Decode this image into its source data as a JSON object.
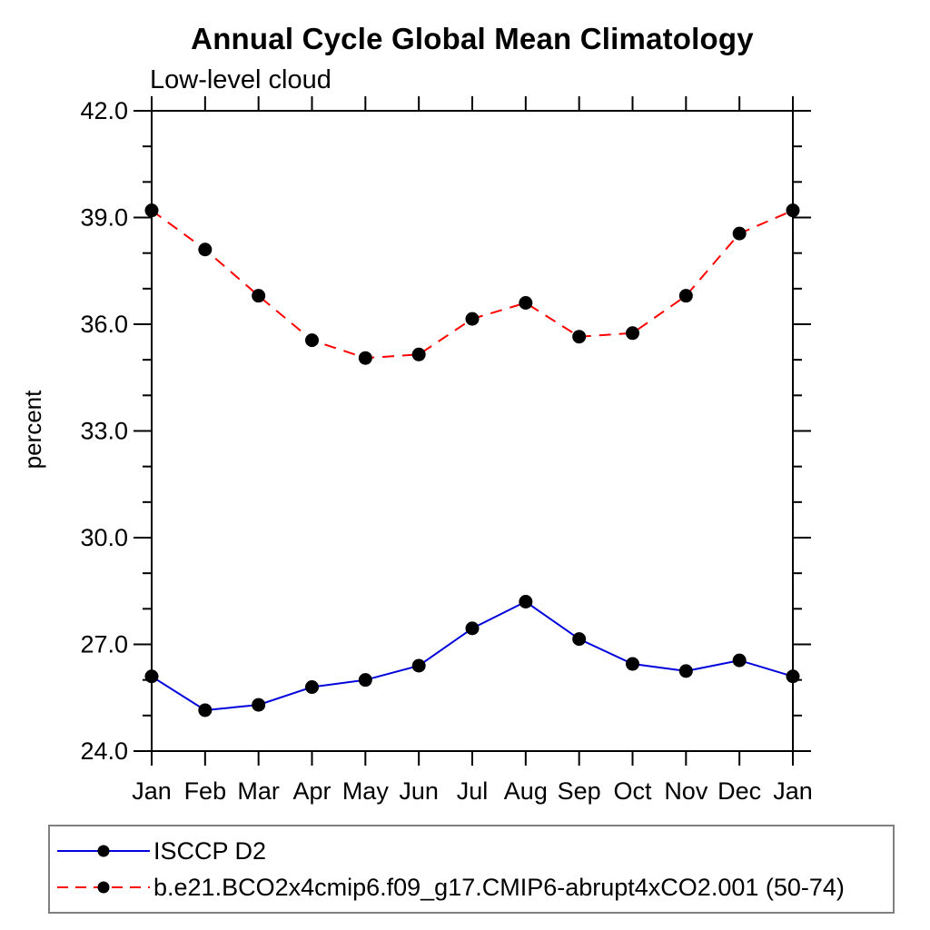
{
  "title": "Annual Cycle Global Mean Climatology",
  "subtitle": "Low-level cloud",
  "colors": {
    "background": "#ffffff",
    "axis": "#000000",
    "marker": "#000000",
    "legend_border": "#808080",
    "series_blue": "#0000dd",
    "series_red": "#ff0000"
  },
  "chart_data": {
    "type": "line",
    "title": "Annual Cycle Global Mean Climatology",
    "subtitle": "Low-level cloud",
    "xlabel": "",
    "ylabel": "percent",
    "categories": [
      "Jan",
      "Feb",
      "Mar",
      "Apr",
      "May",
      "Jun",
      "Jul",
      "Aug",
      "Sep",
      "Oct",
      "Nov",
      "Dec",
      "Jan"
    ],
    "ylim": [
      24.0,
      42.0
    ],
    "ytick_values": [
      24,
      27,
      30,
      33,
      36,
      39,
      42
    ],
    "ytick_labels": [
      "24.0",
      "27.0",
      "30.0",
      "33.0",
      "36.0",
      "39.0",
      "42.0"
    ],
    "yminor_step": 1.0,
    "grid": false,
    "legend_position": "bottom",
    "series": [
      {
        "name": "ISCCP D2",
        "line_color": "#0000dd",
        "line_style": "solid",
        "marker": "filled-circle",
        "marker_color": "#000000",
        "values": [
          26.1,
          25.15,
          25.3,
          25.8,
          26.0,
          26.4,
          27.45,
          28.2,
          27.15,
          26.45,
          26.25,
          26.55,
          26.1
        ]
      },
      {
        "name": "b.e21.BCO2x4cmip6.f09_g17.CMIP6-abrupt4xCO2.001 (50-74)",
        "line_color": "#ff0000",
        "line_style": "dashed",
        "marker": "filled-circle",
        "marker_color": "#000000",
        "values": [
          39.2,
          38.1,
          36.8,
          35.55,
          35.05,
          35.15,
          36.15,
          36.6,
          35.65,
          35.75,
          36.8,
          38.55,
          39.2
        ]
      }
    ]
  }
}
